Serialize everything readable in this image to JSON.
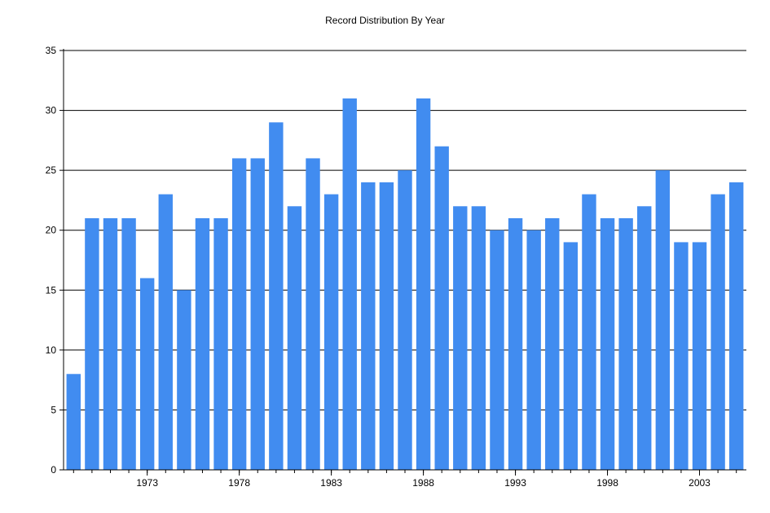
{
  "chart_data": {
    "type": "bar",
    "title": "Record Distribution By Year",
    "xlabel": "",
    "ylabel": "",
    "ylim": [
      0,
      35
    ],
    "yticks": [
      0,
      5,
      10,
      15,
      20,
      25,
      30,
      35
    ],
    "grid": true,
    "bar_color": "#418cf0",
    "categories": [
      1969,
      1970,
      1971,
      1972,
      1973,
      1974,
      1975,
      1976,
      1977,
      1978,
      1979,
      1980,
      1981,
      1982,
      1983,
      1984,
      1985,
      1986,
      1987,
      1988,
      1989,
      1990,
      1991,
      1992,
      1993,
      1994,
      1995,
      1996,
      1997,
      1998,
      1999,
      2000,
      2001,
      2002,
      2003,
      2004,
      2005
    ],
    "values": [
      8,
      21,
      21,
      21,
      16,
      23,
      15,
      21,
      21,
      26,
      26,
      29,
      22,
      26,
      23,
      31,
      24,
      24,
      25,
      31,
      27,
      22,
      22,
      20,
      21,
      20,
      21,
      19,
      23,
      21,
      21,
      22,
      25,
      19,
      19,
      23,
      24
    ],
    "xtick_labels": [
      1973,
      1978,
      1983,
      1988,
      1993,
      1998,
      2003
    ]
  }
}
